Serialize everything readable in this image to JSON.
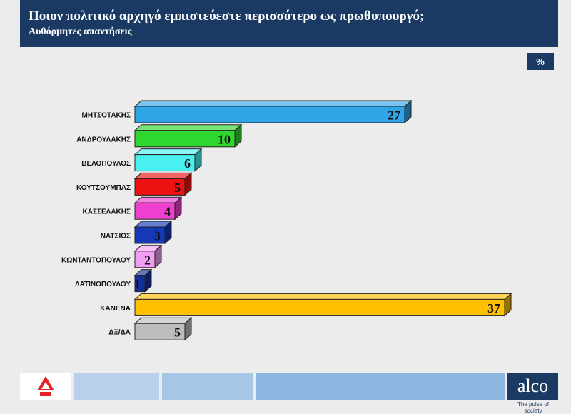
{
  "header": {
    "title": "Ποιον πολιτικό αρχηγό εμπιστεύεστε περισσότερο ως πρωθυπουργό;",
    "subtitle": "Αυθόρμητες απαντήσεις"
  },
  "unit_badge": "%",
  "chart_data": {
    "type": "bar",
    "orientation": "horizontal",
    "title": "Ποιον πολιτικό αρχηγό εμπιστεύεστε περισσότερο ως πρωθυπουργό;",
    "subtitle": "Αυθόρμητες απαντήσεις",
    "categories": [
      "ΜΗΤΣΟΤΑΚΗΣ",
      "ΑΝΔΡΟΥΛΑΚΗΣ",
      "ΒΕΛΟΠΟΥΛΟΣ",
      "ΚΟΥΤΣΟΥΜΠΑΣ",
      "ΚΑΣΣΕΛΑΚΗΣ",
      "ΝΑΤΣΙΟΣ",
      "ΚΩΝΤΑΝΤΟΠΟΥΛΟΥ",
      "ΛΑΤΙΝΟΠΟΥΛΟΥ",
      "ΚΑΝΕΝΑ",
      "ΔΞ/ΔΑ"
    ],
    "values": [
      27,
      10,
      6,
      5,
      4,
      3,
      2,
      1,
      37,
      5
    ],
    "colors": [
      "#2fa4e7",
      "#2fd62f",
      "#4af0f0",
      "#ee1111",
      "#ee3fcf",
      "#1438b8",
      "#f29ef2",
      "#16309a",
      "#ffc000",
      "#bdbdbd"
    ],
    "unit": "%",
    "xlim": [
      0,
      37
    ],
    "grid": false,
    "legend": "none"
  },
  "footer": {
    "brand": "alco",
    "tagline": "The pulse of society",
    "channel_logo": "alpha-news-logo"
  },
  "footer_colors": [
    "#b8d0e8",
    "#a6c6e6",
    "#8db6e0"
  ]
}
